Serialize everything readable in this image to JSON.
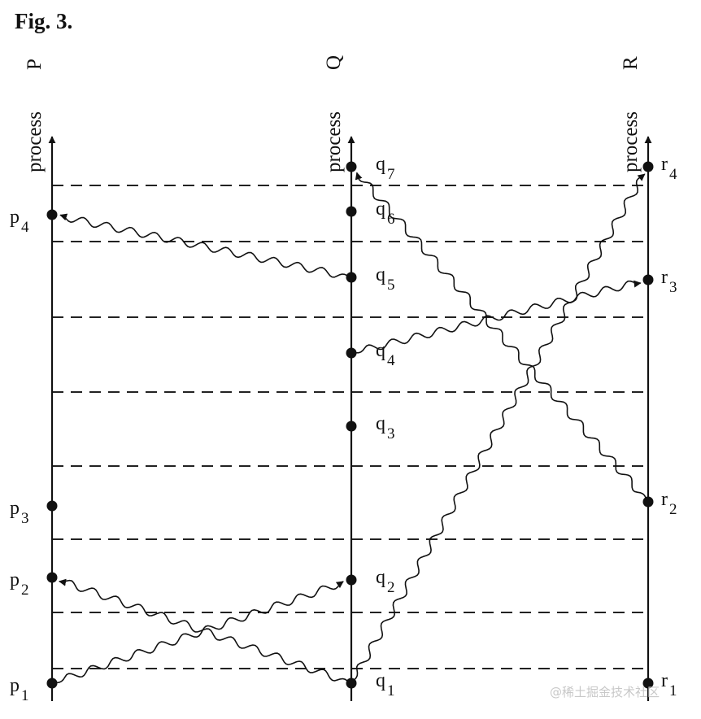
{
  "figure": {
    "title": "Fig. 3."
  },
  "processes": [
    {
      "id": "P",
      "name": "P",
      "axis_label": "process"
    },
    {
      "id": "Q",
      "name": "Q",
      "axis_label": "process"
    },
    {
      "id": "R",
      "name": "R",
      "axis_label": "process"
    }
  ],
  "events": [
    {
      "id": "p1",
      "process": "P",
      "letter": "p",
      "sub": "1"
    },
    {
      "id": "p2",
      "process": "P",
      "letter": "p",
      "sub": "2"
    },
    {
      "id": "p3",
      "process": "P",
      "letter": "p",
      "sub": "3"
    },
    {
      "id": "p4",
      "process": "P",
      "letter": "p",
      "sub": "4"
    },
    {
      "id": "q1",
      "process": "Q",
      "letter": "q",
      "sub": "1"
    },
    {
      "id": "q2",
      "process": "Q",
      "letter": "q",
      "sub": "2"
    },
    {
      "id": "q3",
      "process": "Q",
      "letter": "q",
      "sub": "3"
    },
    {
      "id": "q4",
      "process": "Q",
      "letter": "q",
      "sub": "4"
    },
    {
      "id": "q5",
      "process": "Q",
      "letter": "q",
      "sub": "5"
    },
    {
      "id": "q6",
      "process": "Q",
      "letter": "q",
      "sub": "6"
    },
    {
      "id": "q7",
      "process": "Q",
      "letter": "q",
      "sub": "7"
    },
    {
      "id": "r1",
      "process": "R",
      "letter": "r",
      "sub": "1"
    },
    {
      "id": "r2",
      "process": "R",
      "letter": "r",
      "sub": "2"
    },
    {
      "id": "r3",
      "process": "R",
      "letter": "r",
      "sub": "3"
    },
    {
      "id": "r4",
      "process": "R",
      "letter": "r",
      "sub": "4"
    }
  ],
  "messages": [
    {
      "from": "p1",
      "to": "q2"
    },
    {
      "from": "q1",
      "to": "p2"
    },
    {
      "from": "q1",
      "to": "r4"
    },
    {
      "from": "r2",
      "to": "q7"
    },
    {
      "from": "q4",
      "to": "r3"
    },
    {
      "from": "q5",
      "to": "p4"
    }
  ],
  "watermark": "@稀土掘金技术社区"
}
